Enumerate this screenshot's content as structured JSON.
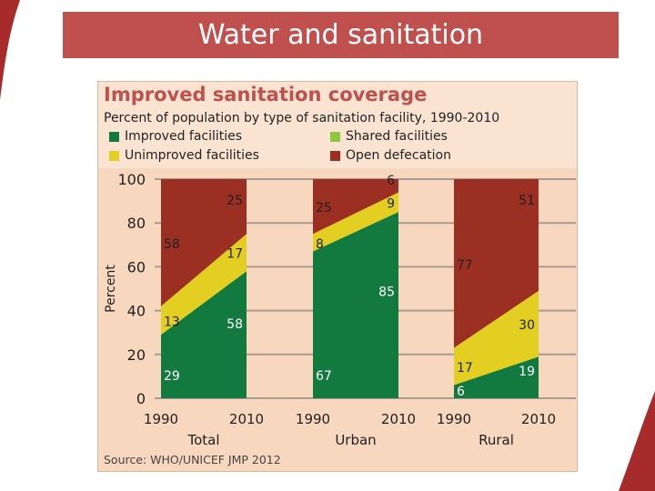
{
  "slide_title": "Water and sanitation",
  "chart_data": {
    "type": "area",
    "title": "Improved sanitation coverage",
    "subtitle": "Percent of population by type of sanitation facility, 1990-2010",
    "ylabel": "Percent",
    "ylim": [
      0,
      100
    ],
    "yticks": [
      0,
      20,
      40,
      60,
      80,
      100
    ],
    "grid": true,
    "legend_placement": "top",
    "source": "Source:  WHO/UNICEF JMP 2012",
    "legend": [
      {
        "name": "Improved facilities",
        "color": "#127a3e"
      },
      {
        "name": "Shared facilities",
        "color": "#8dc63f"
      },
      {
        "name": "Unimproved facilities",
        "color": "#e2cf22"
      },
      {
        "name": "Open defecation",
        "color": "#9a2f22"
      }
    ],
    "panels": [
      {
        "label": "Total",
        "x": [
          "1990",
          "2010"
        ],
        "series": [
          {
            "name": "Improved facilities",
            "values": [
              29,
              58
            ]
          },
          {
            "name": "Shared facilities",
            "values": [
              0,
              0
            ]
          },
          {
            "name": "Unimproved facilities",
            "values": [
              13,
              17
            ]
          },
          {
            "name": "Open defecation",
            "values": [
              58,
              25
            ]
          }
        ]
      },
      {
        "label": "Urban",
        "x": [
          "1990",
          "2010"
        ],
        "series": [
          {
            "name": "Improved facilities",
            "values": [
              67,
              85
            ]
          },
          {
            "name": "Shared facilities",
            "values": [
              0,
              0
            ]
          },
          {
            "name": "Unimproved facilities",
            "values": [
              8,
              9
            ]
          },
          {
            "name": "Open defecation",
            "values": [
              25,
              6
            ]
          }
        ]
      },
      {
        "label": "Rural",
        "x": [
          "1990",
          "2010"
        ],
        "series": [
          {
            "name": "Improved facilities",
            "values": [
              6,
              19
            ]
          },
          {
            "name": "Shared facilities",
            "values": [
              0,
              0
            ]
          },
          {
            "name": "Unimproved facilities",
            "values": [
              17,
              30
            ]
          },
          {
            "name": "Open defecation",
            "values": [
              77,
              51
            ]
          }
        ]
      }
    ]
  }
}
